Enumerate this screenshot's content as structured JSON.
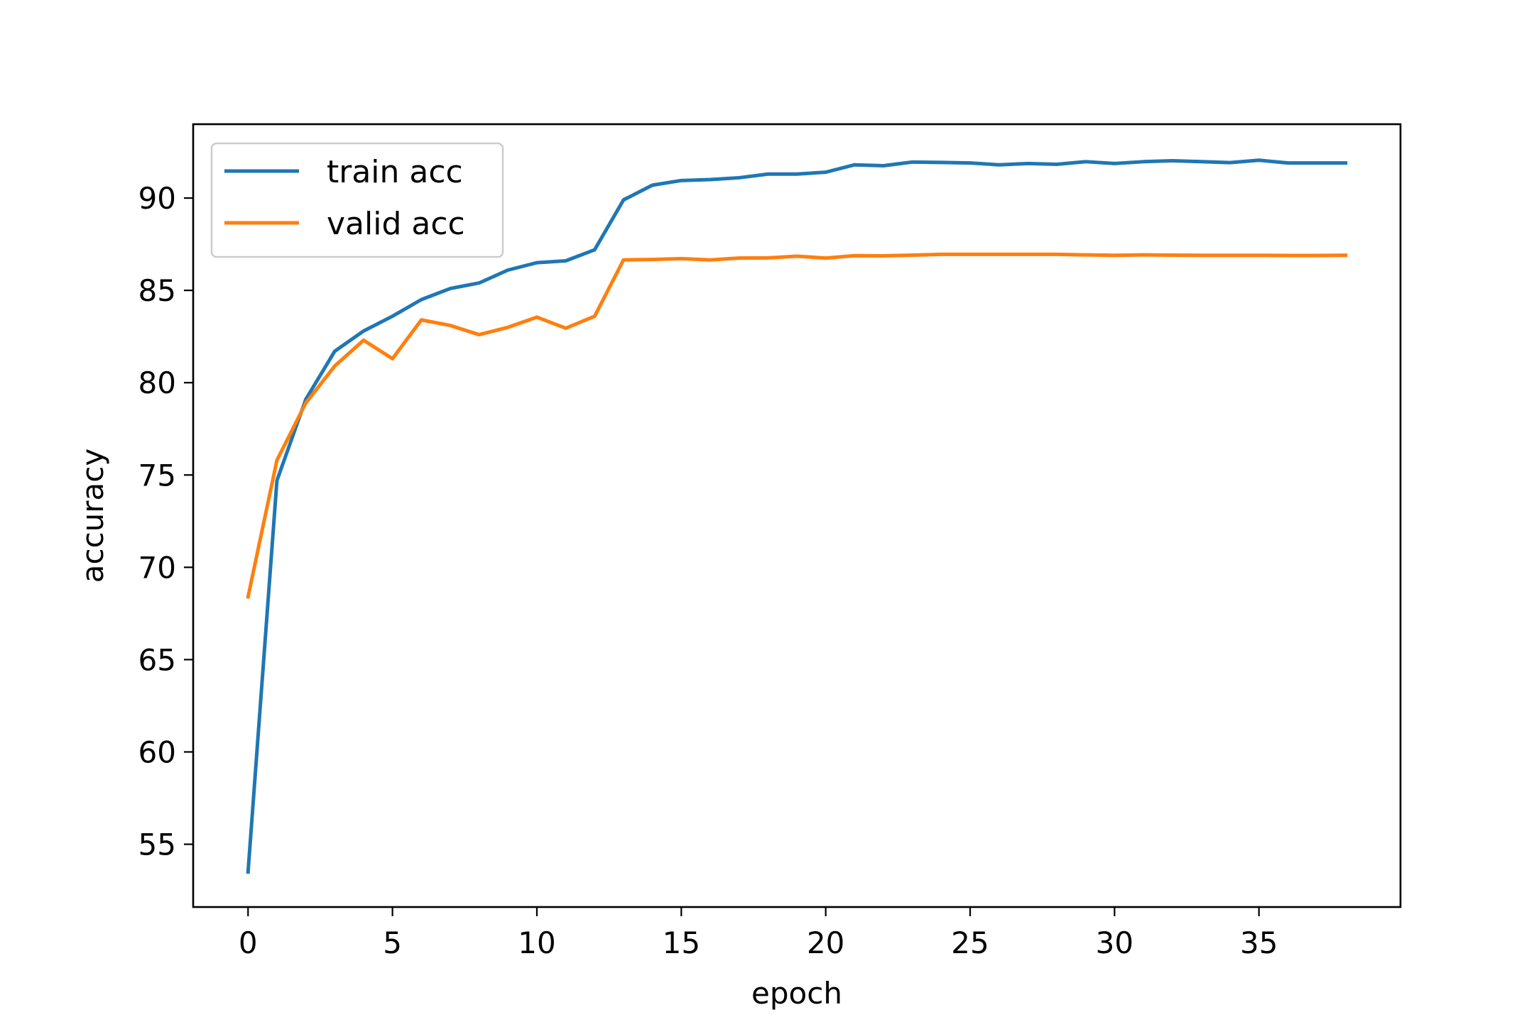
{
  "chart_data": {
    "type": "line",
    "title": "",
    "xlabel": "epoch",
    "ylabel": "accuracy",
    "xlim": [
      -1.9,
      39.9
    ],
    "ylim": [
      51.6,
      94.0
    ],
    "xticks": [
      0,
      5,
      10,
      15,
      20,
      25,
      30,
      35
    ],
    "yticks": [
      55,
      60,
      65,
      70,
      75,
      80,
      85,
      90
    ],
    "grid": false,
    "legend_position": "upper-left",
    "x": [
      0,
      1,
      2,
      3,
      4,
      5,
      6,
      7,
      8,
      9,
      10,
      11,
      12,
      13,
      14,
      15,
      16,
      17,
      18,
      19,
      20,
      21,
      22,
      23,
      24,
      25,
      26,
      27,
      28,
      29,
      30,
      31,
      32,
      33,
      34,
      35,
      36,
      37,
      38
    ],
    "series": [
      {
        "name": "train acc",
        "color": "#1f77b4",
        "values": [
          53.5,
          74.7,
          79.1,
          81.7,
          82.8,
          83.6,
          84.5,
          85.1,
          85.4,
          86.1,
          86.5,
          86.6,
          87.2,
          89.9,
          90.7,
          90.95,
          91.0,
          91.1,
          91.3,
          91.3,
          91.4,
          91.8,
          91.75,
          91.95,
          91.93,
          91.9,
          91.8,
          91.87,
          91.83,
          91.97,
          91.87,
          91.97,
          92.02,
          91.97,
          91.92,
          92.05,
          91.9,
          91.9,
          91.9
        ]
      },
      {
        "name": "valid acc",
        "color": "#ff7f0e",
        "values": [
          68.4,
          75.8,
          78.9,
          80.9,
          82.3,
          81.3,
          83.4,
          83.1,
          82.6,
          83.0,
          83.55,
          82.95,
          83.6,
          86.65,
          86.67,
          86.72,
          86.65,
          86.75,
          86.76,
          86.85,
          86.75,
          86.88,
          86.87,
          86.91,
          86.95,
          86.95,
          86.95,
          86.95,
          86.95,
          86.92,
          86.9,
          86.92,
          86.91,
          86.9,
          86.9,
          86.9,
          86.89,
          86.89,
          86.9
        ]
      }
    ]
  }
}
